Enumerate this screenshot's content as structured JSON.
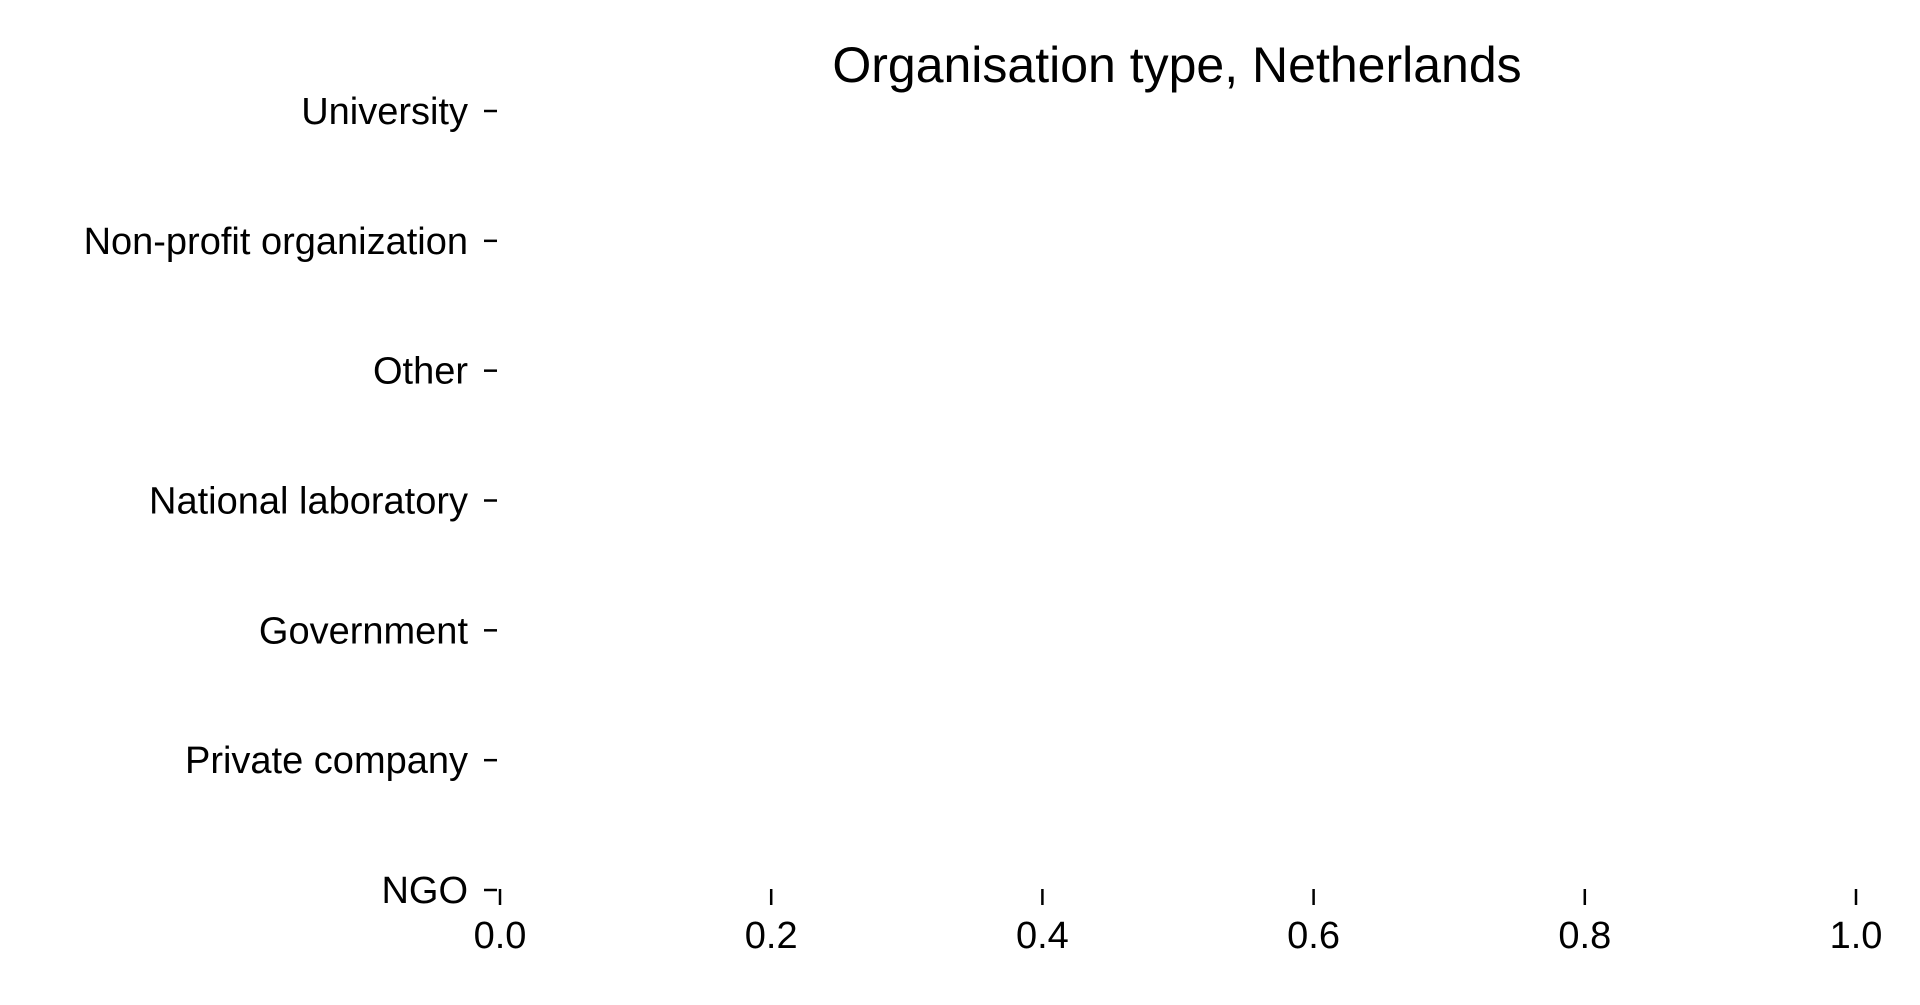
{
  "chart_data": {
    "type": "bar",
    "orientation": "horizontal",
    "title": "Organisation type, Netherlands",
    "xlabel": "",
    "ylabel": "",
    "categories": [
      "University",
      "Non-profit organization",
      "Other",
      "National laboratory",
      "Government",
      "Private company",
      "NGO"
    ],
    "values": [
      0,
      0,
      0,
      0,
      0,
      0,
      0
    ],
    "xlim": [
      0.0,
      1.0
    ],
    "x_ticks": [
      0.0,
      0.2,
      0.4,
      0.6,
      0.8,
      1.0
    ],
    "x_tick_labels": [
      "0.0",
      "0.2",
      "0.4",
      "0.6",
      "0.8",
      "1.0"
    ],
    "grid": false,
    "legend": "none",
    "colors": {
      "text": "#000000",
      "tick": "#000000",
      "background": "#ffffff"
    }
  }
}
